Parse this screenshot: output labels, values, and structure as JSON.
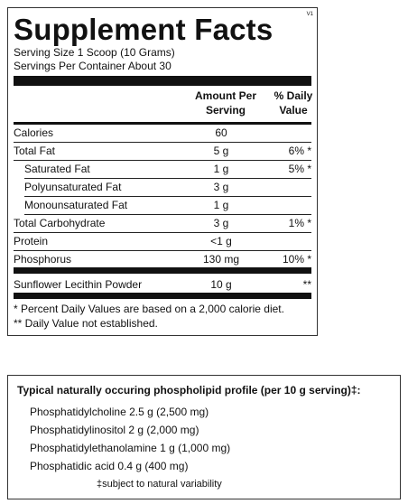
{
  "header": {
    "title": "Supplement Facts",
    "version": "V1"
  },
  "serving_size": "Serving Size  1 Scoop (10 Grams)",
  "servings_per_container": "Servings Per Container  About 30",
  "columns": {
    "amount": "Amount Per Serving",
    "daily_value": "% Daily Value"
  },
  "nutrients": [
    {
      "name": "Calories",
      "amount": "60"
    },
    {
      "name": "Total Fat",
      "amount": "5 g",
      "daily_value": "6% *",
      "sub": [
        {
          "name": "Saturated Fat",
          "amount": "1 g",
          "daily_value": "5% *"
        },
        {
          "name": "Polyunsaturated Fat",
          "amount": "3 g"
        },
        {
          "name": "Monounsaturated Fat",
          "amount": "1 g"
        }
      ]
    },
    {
      "name": "Total Carbohydrate",
      "amount": "3 g",
      "daily_value": "1% *"
    },
    {
      "name": "Protein",
      "amount": "<1 g"
    },
    {
      "name": "Phosphorus",
      "amount": "130 mg",
      "daily_value": "10% *"
    }
  ],
  "other": [
    {
      "name": "Sunflower Lecithin Powder",
      "amount": "10 g",
      "daily_value": "**"
    }
  ],
  "footnotes": [
    "* Percent Daily Values are based on a 2,000 calorie diet.",
    "** Daily Value not established."
  ],
  "profile": {
    "title": "Typical naturally occuring phospholipid profile (per 10 g serving)‡:",
    "items": [
      "Phosphatidylcholine 2.5 g (2,500 mg)",
      "Phosphatidylinositol 2 g (2,000 mg)",
      "Phosphatidylethanolamine 1 g (1,000 mg)",
      "Phosphatidic acid 0.4 g (400 mg)"
    ],
    "note": "‡subject to natural variability"
  }
}
